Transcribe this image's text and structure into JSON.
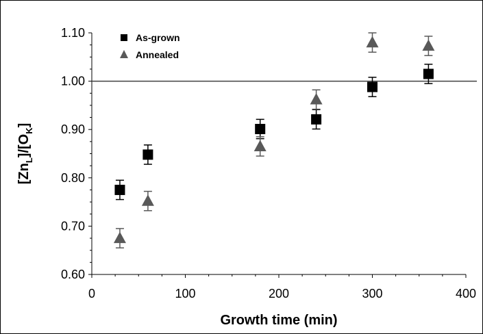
{
  "chart_data": {
    "type": "scatter",
    "title": "",
    "xlabel": "Growth time (min)",
    "ylabel": {
      "open": "[Zn",
      "sub1": "L",
      "mid": "]/[O",
      "sub2": "K",
      "close": "]"
    },
    "xlim": [
      0,
      400
    ],
    "ylim": [
      0.6,
      1.1
    ],
    "xticks": [
      {
        "value": 0,
        "label": "0"
      },
      {
        "value": 100,
        "label": "100"
      },
      {
        "value": 200,
        "label": "200"
      },
      {
        "value": 300,
        "label": "300"
      },
      {
        "value": 400,
        "label": "400"
      }
    ],
    "yticks": [
      {
        "value": 0.6,
        "label": "0.60"
      },
      {
        "value": 0.7,
        "label": "0.70"
      },
      {
        "value": 0.8,
        "label": "0.80"
      },
      {
        "value": 0.9,
        "label": "0.90"
      },
      {
        "value": 1.0,
        "label": "1.00"
      },
      {
        "value": 1.1,
        "label": "1.10"
      }
    ],
    "reference_line": {
      "y": 1.0,
      "color": "#404040"
    },
    "legend_position": "top-left",
    "series": [
      {
        "name": "As-grown",
        "marker": "square",
        "color": "#000000",
        "points": [
          {
            "x": 30,
            "y": 0.775,
            "err": 0.02
          },
          {
            "x": 60,
            "y": 0.848,
            "err": 0.02
          },
          {
            "x": 180,
            "y": 0.901,
            "err": 0.02
          },
          {
            "x": 240,
            "y": 0.921,
            "err": 0.02
          },
          {
            "x": 300,
            "y": 0.988,
            "err": 0.02
          },
          {
            "x": 360,
            "y": 1.015,
            "err": 0.02
          }
        ]
      },
      {
        "name": "Annealed",
        "marker": "triangle",
        "color": "#595959",
        "points": [
          {
            "x": 30,
            "y": 0.675,
            "err": 0.02
          },
          {
            "x": 60,
            "y": 0.752,
            "err": 0.02
          },
          {
            "x": 180,
            "y": 0.865,
            "err": 0.02
          },
          {
            "x": 240,
            "y": 0.962,
            "err": 0.02
          },
          {
            "x": 300,
            "y": 1.08,
            "err": 0.02
          },
          {
            "x": 360,
            "y": 1.073,
            "err": 0.02
          }
        ]
      }
    ]
  }
}
